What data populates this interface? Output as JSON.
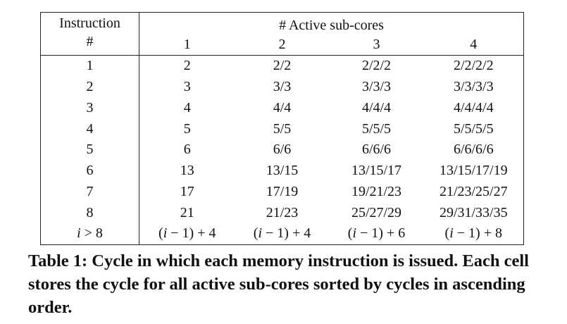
{
  "table": {
    "headers": {
      "instruction_line1": "Instruction",
      "instruction_line2": "#",
      "group": "# Active sub-cores",
      "subcores": [
        "1",
        "2",
        "3",
        "4"
      ]
    },
    "rows": [
      {
        "instr": "1",
        "cells": [
          "2",
          "2/2",
          "2/2/2",
          "2/2/2/2"
        ]
      },
      {
        "instr": "2",
        "cells": [
          "3",
          "3/3",
          "3/3/3",
          "3/3/3/3"
        ]
      },
      {
        "instr": "3",
        "cells": [
          "4",
          "4/4",
          "4/4/4",
          "4/4/4/4"
        ]
      },
      {
        "instr": "4",
        "cells": [
          "5",
          "5/5",
          "5/5/5",
          "5/5/5/5"
        ]
      },
      {
        "instr": "5",
        "cells": [
          "6",
          "6/6",
          "6/6/6",
          "6/6/6/6"
        ]
      },
      {
        "instr": "6",
        "cells": [
          "13",
          "13/15",
          "13/15/17",
          "13/15/17/19"
        ]
      },
      {
        "instr": "7",
        "cells": [
          "17",
          "17/19",
          "19/21/23",
          "21/23/25/27"
        ]
      },
      {
        "instr": "8",
        "cells": [
          "21",
          "21/23",
          "25/27/29",
          "29/31/33/35"
        ]
      },
      {
        "instr": "i > 8",
        "cells": [
          "(i − 1) + 4",
          "(i − 1) + 4",
          "(i − 1) + 6",
          "(i − 1) + 8"
        ]
      }
    ]
  },
  "caption": "Table 1: Cycle in which each memory instruction is issued. Each cell stores the cycle for all active sub-cores sorted by cycles in ascending order."
}
